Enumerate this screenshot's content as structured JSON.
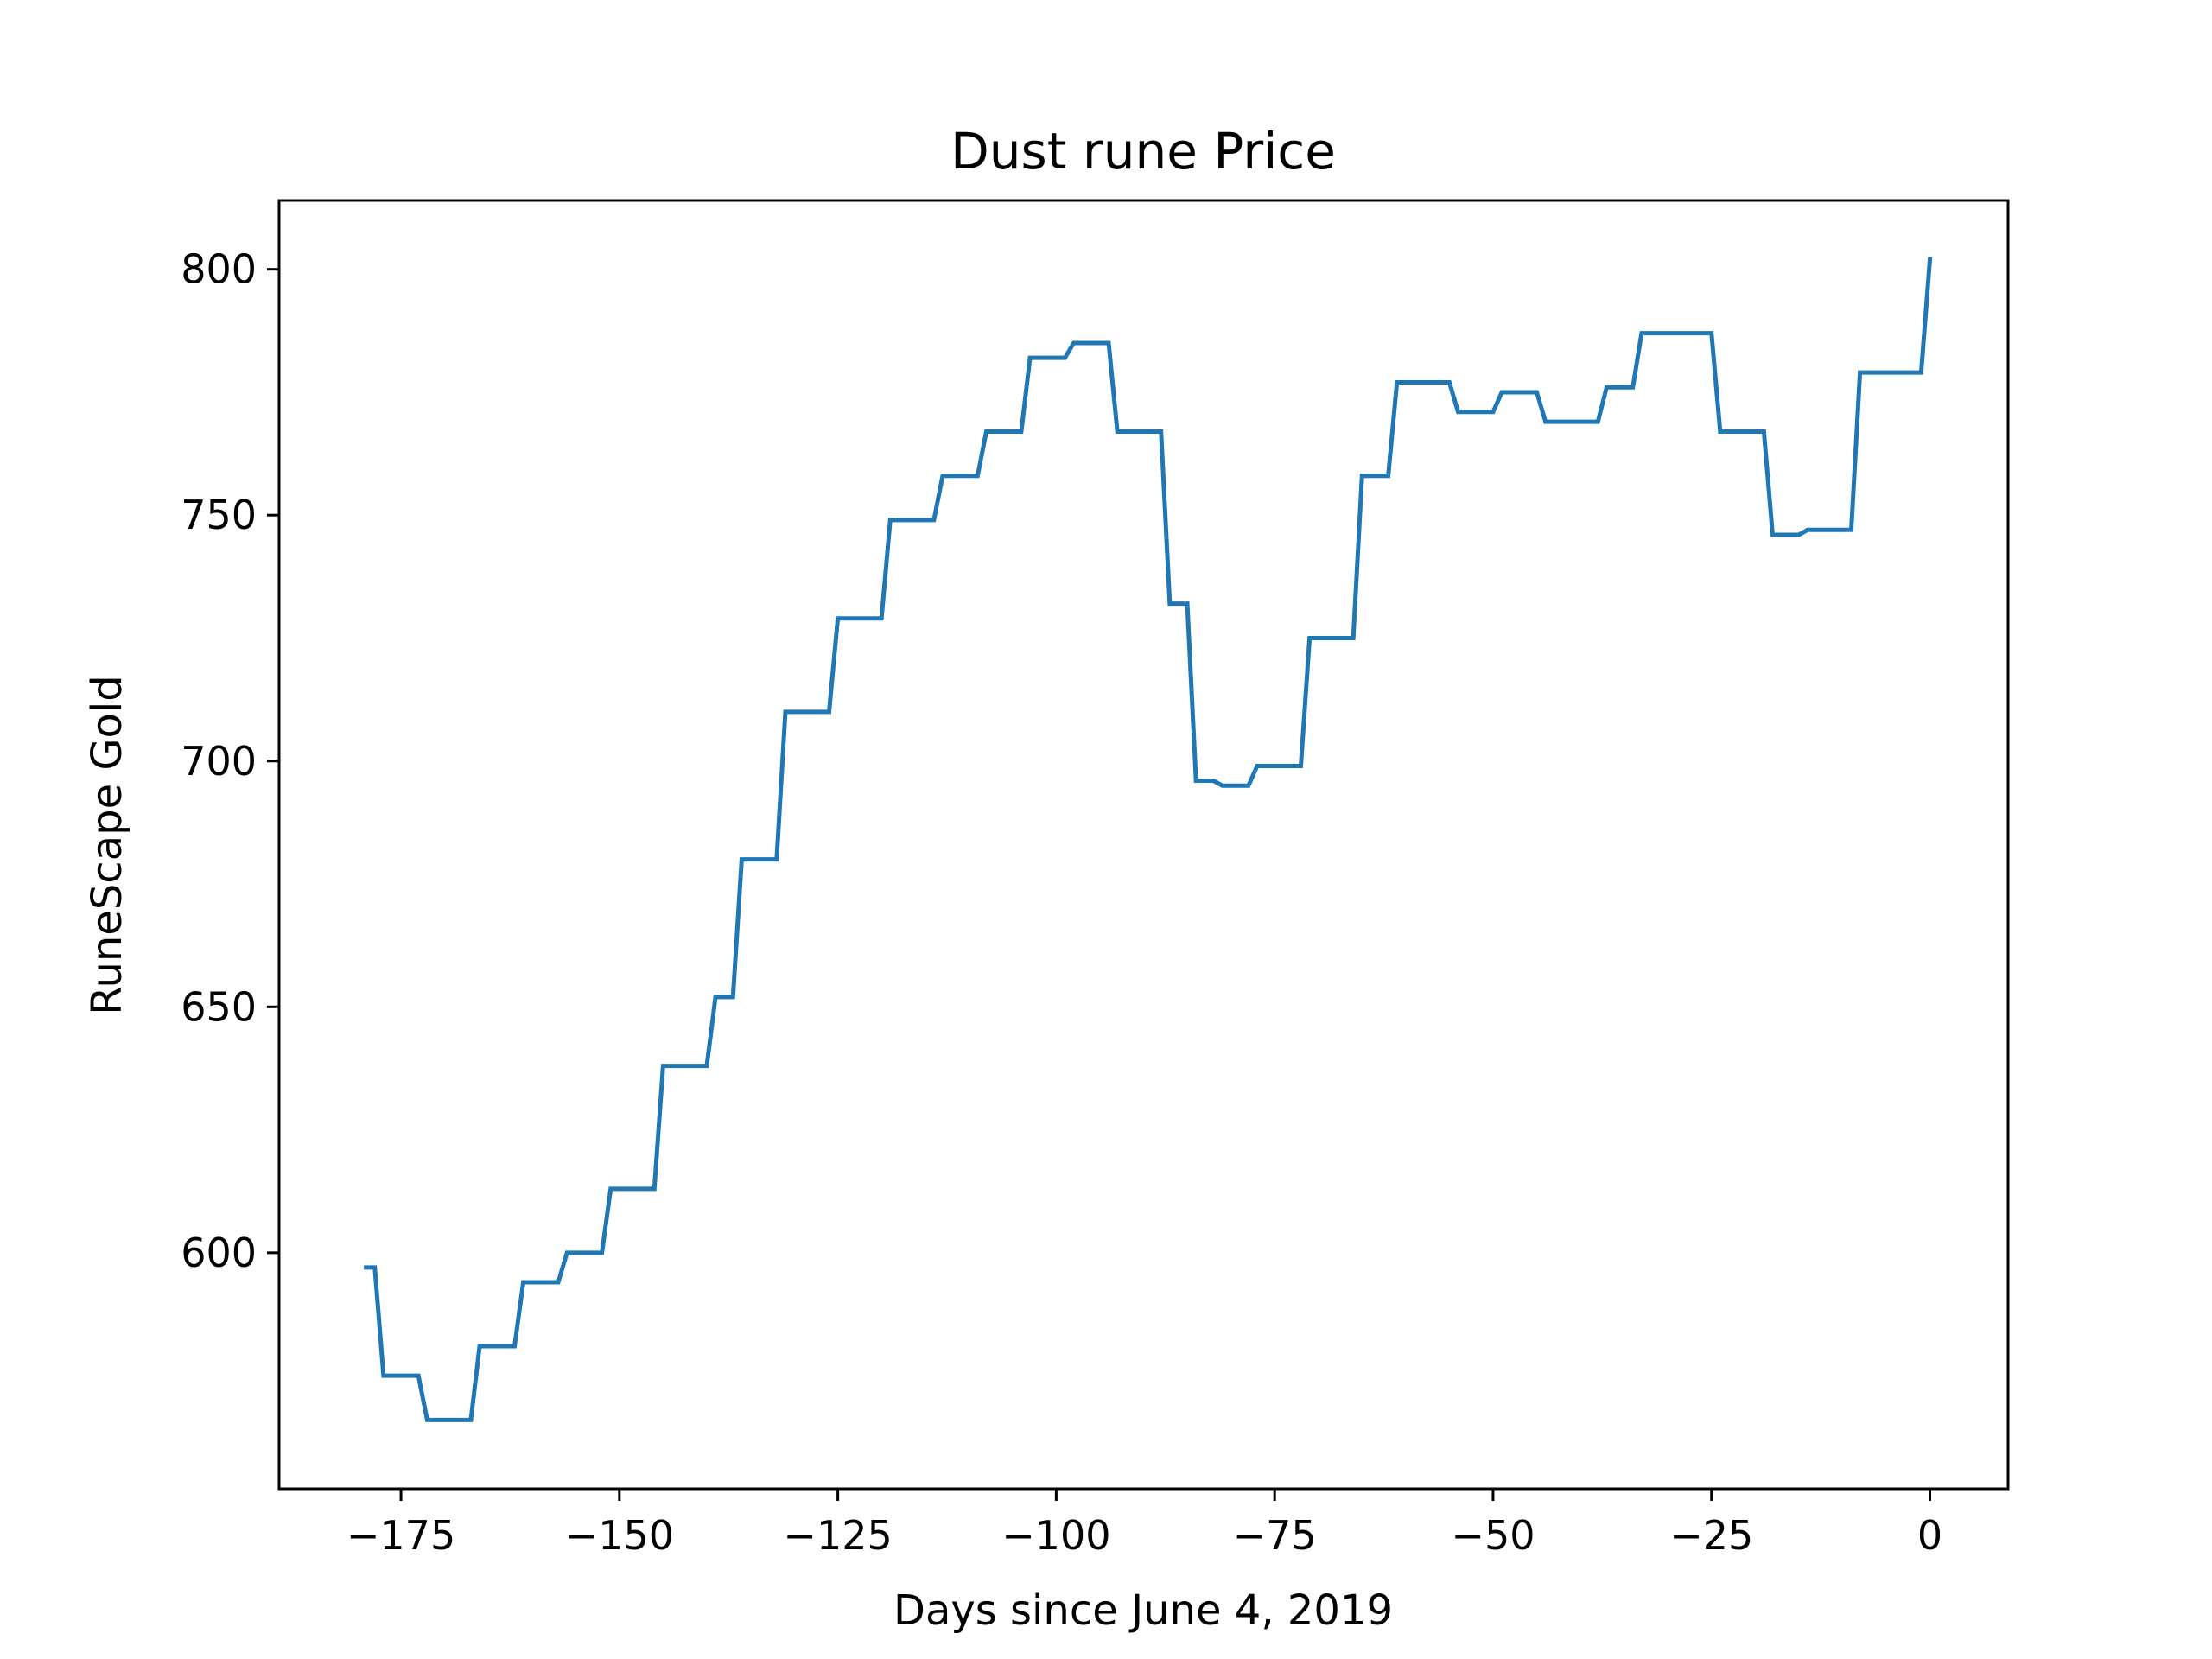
{
  "chart_data": {
    "type": "line",
    "title": "Dust rune Price",
    "xlabel": "Days since June 4, 2019",
    "ylabel": "RuneScape Gold",
    "xlim": [
      -188.95,
      8.95
    ],
    "ylim": [
      552,
      814
    ],
    "x_ticks": [
      -175,
      -150,
      -125,
      -100,
      -75,
      -50,
      -25,
      0
    ],
    "x_tick_labels": [
      "−175",
      "−150",
      "−125",
      "−100",
      "−75",
      "−50",
      "−25",
      "0"
    ],
    "y_ticks": [
      600,
      650,
      700,
      750,
      800
    ],
    "y_tick_labels": [
      "600",
      "650",
      "700",
      "750",
      "800"
    ],
    "grid": false,
    "legend": null,
    "series": [
      {
        "color": "#1f77b4",
        "x": [
          -179,
          -178,
          -177,
          -176,
          -175,
          -174,
          -173,
          -172,
          -171,
          -170,
          -169,
          -168,
          -167,
          -166,
          -165,
          -164,
          -163,
          -162,
          -161,
          -160,
          -159,
          -158,
          -157,
          -156,
          -155,
          -154,
          -153,
          -152,
          -151,
          -150,
          -149,
          -148,
          -147,
          -146,
          -145,
          -144,
          -143,
          -142,
          -141,
          -140,
          -139,
          -138,
          -137,
          -136,
          -135,
          -134,
          -133,
          -132,
          -131,
          -130,
          -129,
          -128,
          -127,
          -126,
          -125,
          -124,
          -123,
          -122,
          -121,
          -120,
          -119,
          -118,
          -117,
          -116,
          -115,
          -114,
          -113,
          -112,
          -111,
          -110,
          -109,
          -108,
          -107,
          -106,
          -105,
          -104,
          -103,
          -102,
          -101,
          -100,
          -99,
          -98,
          -97,
          -96,
          -95,
          -94,
          -93,
          -92,
          -91,
          -90,
          -89,
          -88,
          -87,
          -86,
          -85,
          -84,
          -83,
          -82,
          -81,
          -80,
          -79,
          -78,
          -77,
          -76,
          -75,
          -74,
          -73,
          -72,
          -71,
          -70,
          -69,
          -68,
          -67,
          -66,
          -65,
          -64,
          -63,
          -62,
          -61,
          -60,
          -59,
          -58,
          -57,
          -56,
          -55,
          -54,
          -53,
          -52,
          -51,
          -50,
          -49,
          -48,
          -47,
          -46,
          -45,
          -44,
          -43,
          -42,
          -41,
          -40,
          -39,
          -38,
          -37,
          -36,
          -35,
          -34,
          -33,
          -32,
          -31,
          -30,
          -29,
          -28,
          -27,
          -26,
          -25,
          -24,
          -23,
          -22,
          -21,
          -20,
          -19,
          -18,
          -17,
          -16,
          -15,
          -14,
          -13,
          -12,
          -11,
          -10,
          -9,
          -8,
          -7,
          -6,
          -5,
          -4,
          -3,
          -2,
          -1,
          0
        ],
        "y": [
          597,
          597,
          575,
          575,
          575,
          575,
          575,
          566,
          566,
          566,
          566,
          566,
          566,
          581,
          581,
          581,
          581,
          581,
          594,
          594,
          594,
          594,
          594,
          600,
          600,
          600,
          600,
          600,
          613,
          613,
          613,
          613,
          613,
          613,
          638,
          638,
          638,
          638,
          638,
          638,
          652,
          652,
          652,
          680,
          680,
          680,
          680,
          680,
          710,
          710,
          710,
          710,
          710,
          710,
          729,
          729,
          729,
          729,
          729,
          729,
          749,
          749,
          749,
          749,
          749,
          749,
          758,
          758,
          758,
          758,
          758,
          767,
          767,
          767,
          767,
          767,
          782,
          782,
          782,
          782,
          782,
          785,
          785,
          785,
          785,
          785,
          767,
          767,
          767,
          767,
          767,
          767,
          732,
          732,
          732,
          696,
          696,
          696,
          695,
          695,
          695,
          695,
          699,
          699,
          699,
          699,
          699,
          699,
          725,
          725,
          725,
          725,
          725,
          725,
          758,
          758,
          758,
          758,
          777,
          777,
          777,
          777,
          777,
          777,
          777,
          771,
          771,
          771,
          771,
          771,
          775,
          775,
          775,
          775,
          775,
          769,
          769,
          769,
          769,
          769,
          769,
          769,
          776,
          776,
          776,
          776,
          787,
          787,
          787,
          787,
          787,
          787,
          787,
          787,
          787,
          767,
          767,
          767,
          767,
          767,
          767,
          746,
          746,
          746,
          746,
          747,
          747,
          747,
          747,
          747,
          747,
          779,
          779,
          779,
          779,
          779,
          779,
          779,
          779,
          802
        ]
      }
    ]
  }
}
